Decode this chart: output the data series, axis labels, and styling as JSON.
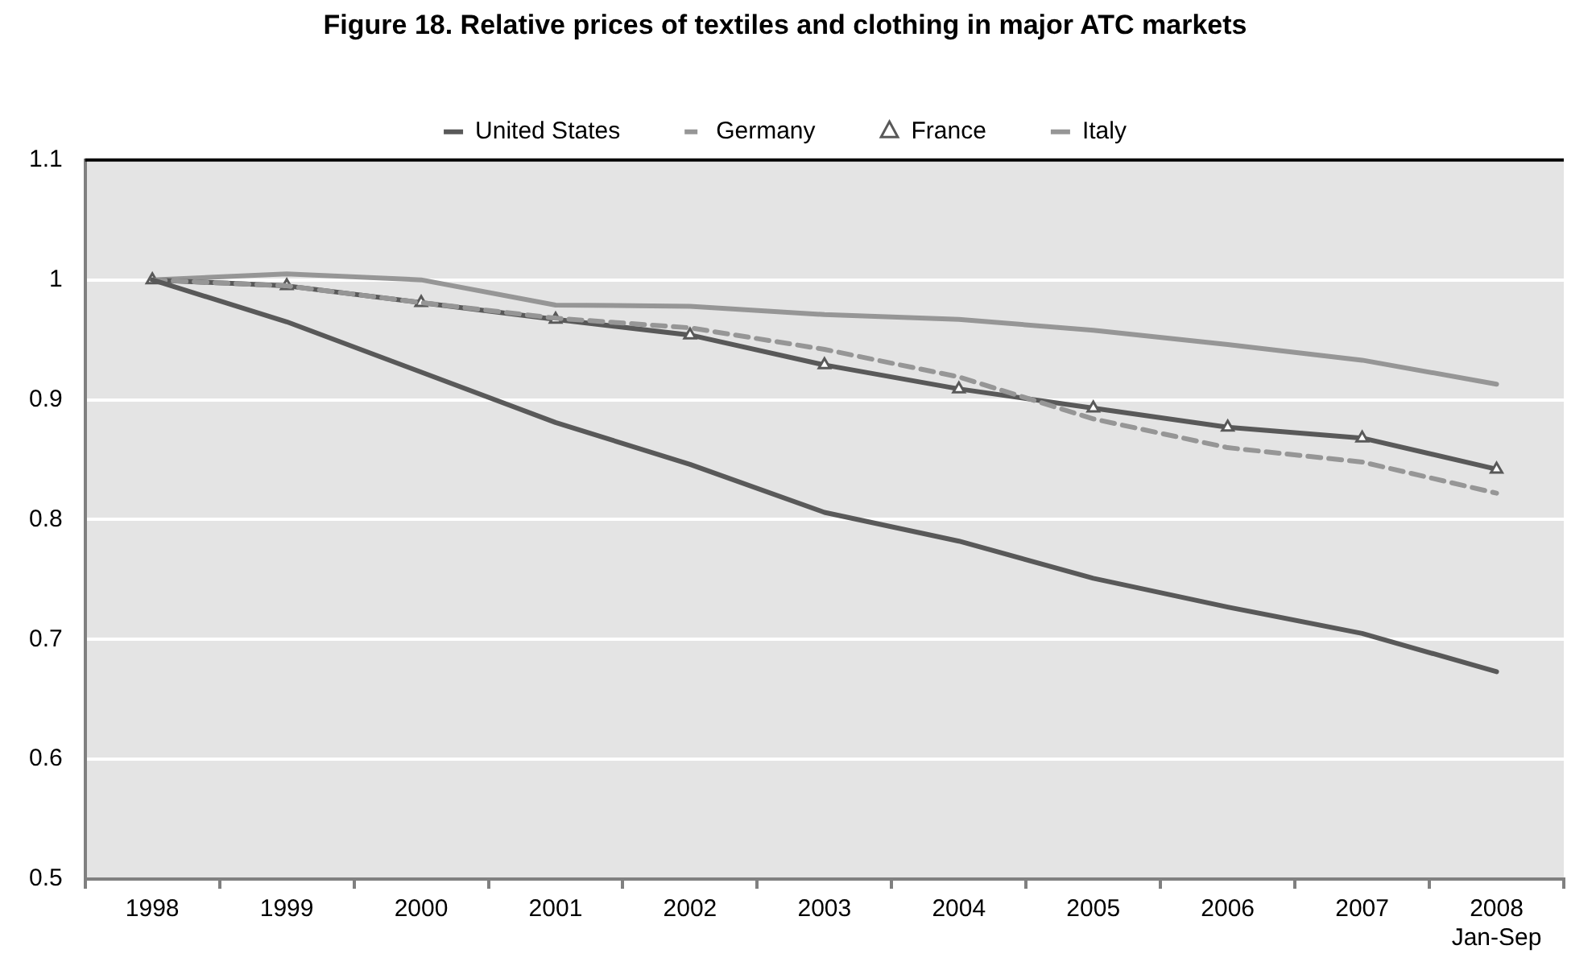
{
  "chart_data": {
    "type": "line",
    "title": "Figure 18. Relative prices of textiles and clothing in major ATC markets",
    "categories": [
      "1998",
      "1999",
      "2000",
      "2001",
      "2002",
      "2003",
      "2004",
      "2005",
      "2006",
      "2007",
      "2008\nJan-Sep"
    ],
    "series": [
      {
        "name": "United States",
        "color": "#595959",
        "line_style": "solid",
        "marker": "none",
        "values": [
          1,
          0.965,
          0.923,
          0.881,
          0.846,
          0.806,
          0.782,
          0.751,
          0.727,
          0.705,
          0.673
        ]
      },
      {
        "name": "Germany",
        "color": "#969696",
        "line_style": "dashed",
        "marker": "none",
        "values": [
          1,
          0.995,
          0.981,
          0.968,
          0.96,
          0.942,
          0.919,
          0.884,
          0.86,
          0.848,
          0.822
        ]
      },
      {
        "name": "France",
        "color": "#595959",
        "line_style": "solid",
        "marker": "triangle",
        "values": [
          1,
          0.995,
          0.981,
          0.967,
          0.954,
          0.929,
          0.909,
          0.893,
          0.877,
          0.868,
          0.842
        ]
      },
      {
        "name": "Italy",
        "color": "#969696",
        "line_style": "solid",
        "marker": "none",
        "values": [
          1,
          1.005,
          1,
          0.979,
          0.978,
          0.971,
          0.967,
          0.958,
          0.946,
          0.933,
          0.913
        ]
      }
    ],
    "ylim": [
      0.5,
      1.1
    ],
    "yticks": [
      0.5,
      0.6,
      0.7,
      0.8,
      0.9,
      1,
      1.1
    ],
    "grid": "y",
    "legend": "top"
  }
}
